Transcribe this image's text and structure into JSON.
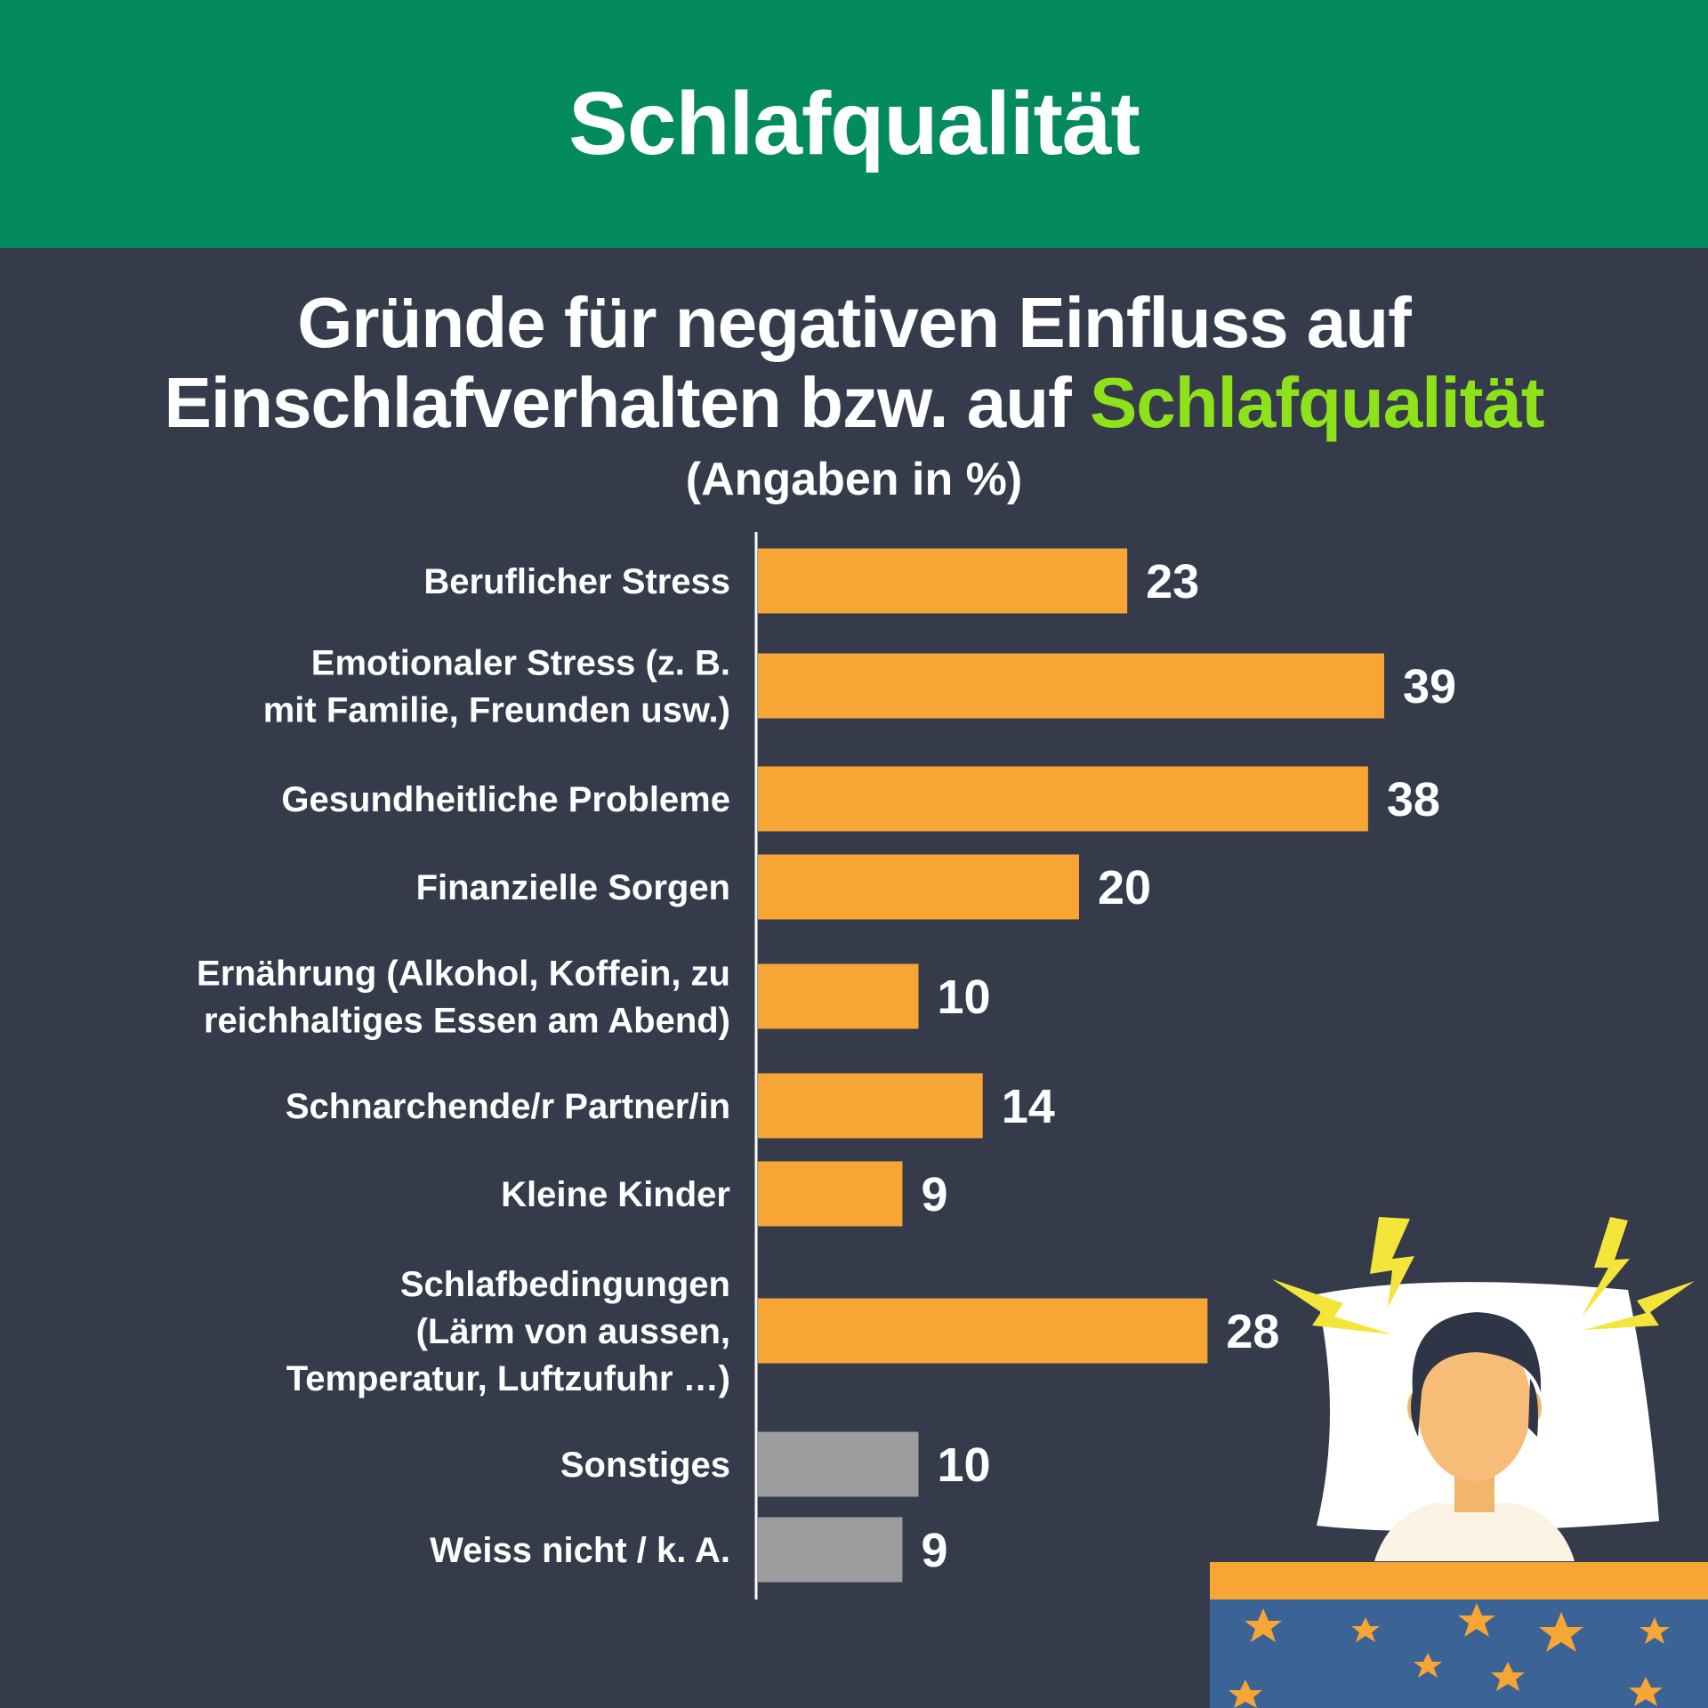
{
  "header": {
    "title": "Schlafqualität"
  },
  "headline": {
    "line1": "Gründe für negativen Einfluss auf",
    "line2_prefix": "Einschlafverhalten bzw. auf ",
    "line2_highlight": "Schlafqualität",
    "unit": "(Angaben in %)"
  },
  "colors": {
    "header_bg": "#048a5f",
    "page_bg": "#353b4b",
    "highlight": "#8ee21a",
    "bar_main": "#f7a535",
    "bar_other": "#9d9d9d"
  },
  "chart_data": {
    "type": "bar",
    "orientation": "horizontal",
    "title": "Gründe für negativen Einfluss auf Einschlafverhalten bzw. auf Schlafqualität",
    "subtitle": "(Angaben in %)",
    "categories": [
      [
        "Beruflicher Stress"
      ],
      [
        "Emotionaler Stress (z. B.",
        "mit Familie, Freunden usw.)"
      ],
      [
        "Gesundheitliche Probleme"
      ],
      [
        "Finanzielle Sorgen"
      ],
      [
        "Ernährung (Alkohol, Koffein, zu",
        "reichhaltiges Essen am Abend)"
      ],
      [
        "Schnarchende/r Partner/in"
      ],
      [
        "Kleine Kinder"
      ],
      [
        "Schlafbedingungen",
        "(Lärm von aussen,",
        "Temperatur, Luftzufuhr …)"
      ],
      [
        "Sonstiges"
      ],
      [
        "Weiss nicht / k. A."
      ]
    ],
    "values": [
      23,
      39,
      38,
      20,
      10,
      14,
      9,
      28,
      10,
      9
    ],
    "value_labels": [
      "23",
      "39",
      "38",
      "20",
      "10",
      "14",
      "9",
      "28",
      "10",
      "9"
    ],
    "bar_groups": [
      "main",
      "main",
      "main",
      "main",
      "main",
      "main",
      "main",
      "main",
      "other",
      "other"
    ],
    "xlim": [
      0,
      50
    ],
    "grid": false,
    "legend": "none"
  },
  "illustration": {
    "icon": "sleepless-person-in-bed-icon"
  }
}
